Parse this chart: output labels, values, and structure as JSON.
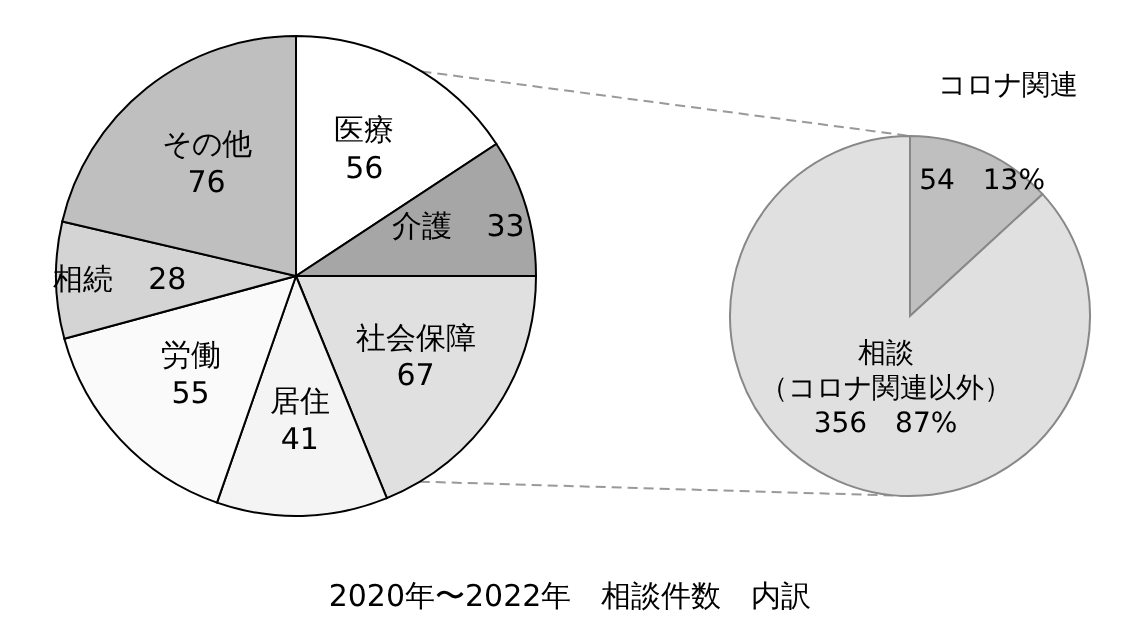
{
  "chart_data": [
    {
      "type": "pie",
      "title": "2020年〜2022年　相談件数　内訳",
      "categories": [
        "医療",
        "介護",
        "社会保障",
        "居住",
        "労働",
        "相続",
        "その他"
      ],
      "values": [
        56,
        33,
        67,
        41,
        55,
        28,
        76
      ],
      "colors": [
        "#ffffff",
        "#a6a6a6",
        "#e0e0e0",
        "#f4f4f4",
        "#fafafa",
        "#d4d4d4",
        "#bfbfbf"
      ],
      "data_labels": true
    },
    {
      "type": "pie",
      "categories": [
        "コロナ関連",
        "相談（コロナ関連以外）"
      ],
      "values": [
        54,
        356
      ],
      "colors": [
        "#bfbfbf",
        "#e0e0e0"
      ],
      "value_labels": [
        "54　13%",
        "356　87%"
      ]
    }
  ]
}
